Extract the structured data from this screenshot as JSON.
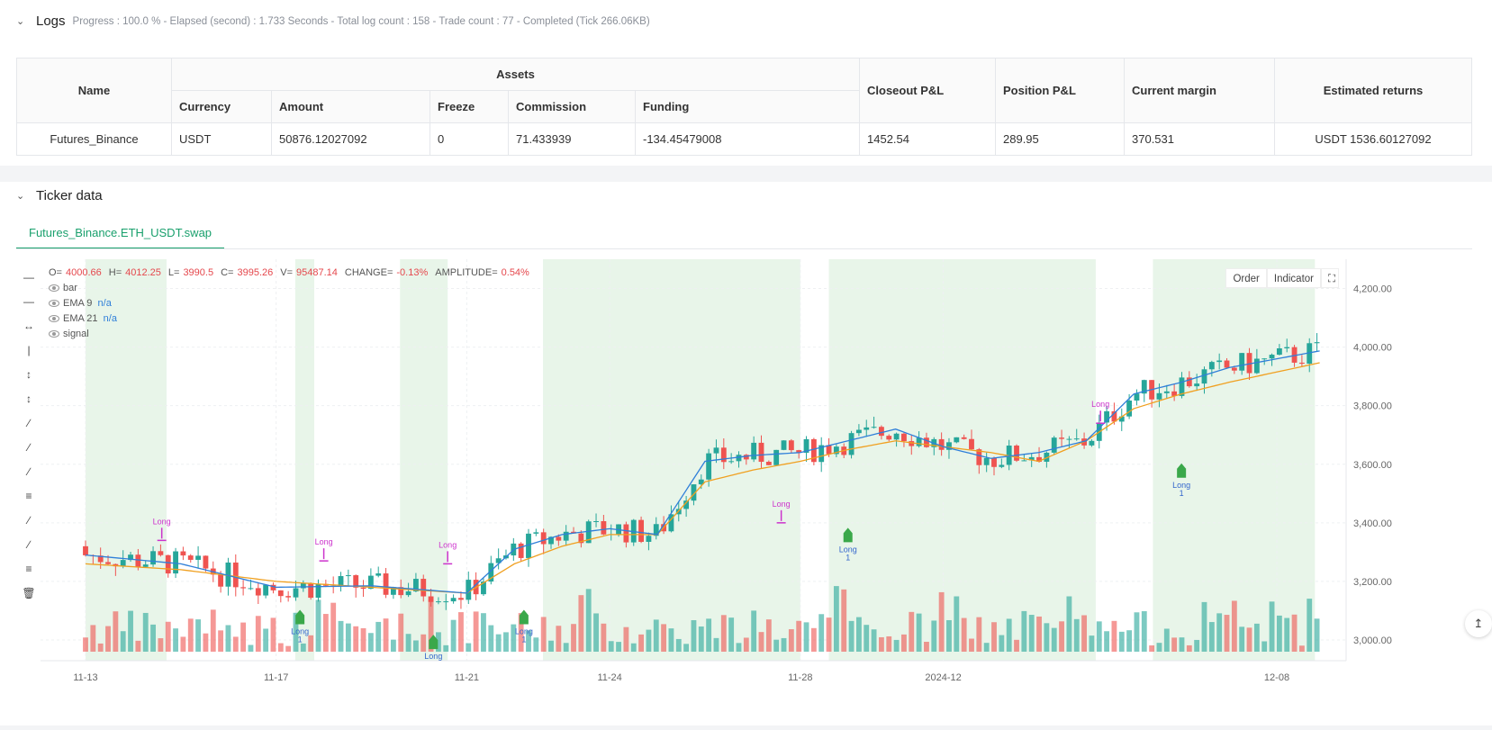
{
  "logs": {
    "title": "Logs",
    "subtitle": "Progress : 100.0 % - Elapsed (second) : 1.733  Seconds - Total log count : 158 - Trade count : 77 - Completed (Tick 266.06KB)",
    "table": {
      "name_header": "Name",
      "assets_header": "Assets",
      "sub_headers": [
        "Currency",
        "Amount",
        "Freeze",
        "Commission",
        "Funding"
      ],
      "other_headers": [
        "Closeout P&L",
        "Position P&L",
        "Current margin",
        "Estimated returns"
      ],
      "row": {
        "name": "Futures_Binance",
        "currency": "USDT",
        "amount": "50876.12027092",
        "freeze": "0",
        "commission": "71.433939",
        "funding": "-134.45479008",
        "closeout_pnl": "1452.54",
        "position_pnl": "289.95",
        "current_margin": "370.531",
        "estimated_returns": "USDT 1536.60127092"
      }
    }
  },
  "ticker": {
    "title": "Ticker data",
    "tab_label": "Futures_Binance.ETH_USDT.swap",
    "buttons": {
      "order": "Order",
      "indicator": "Indicator"
    },
    "legend": {
      "o_label": "O=",
      "o": "4000.66",
      "h_label": "H=",
      "h": "4012.25",
      "l_label": "L=",
      "l": "3990.5",
      "c_label": "C=",
      "c": "3995.26",
      "v_label": "V=",
      "v": "95487.14",
      "change_label": "CHANGE=",
      "change": "-0.13%",
      "amp_label": "AMPLITUDE=",
      "amp": "0.54%",
      "series": [
        {
          "name": "bar",
          "value": ""
        },
        {
          "name": "EMA 9",
          "value": "n/a"
        },
        {
          "name": "EMA 21",
          "value": "n/a"
        },
        {
          "name": "signal",
          "value": ""
        }
      ]
    },
    "colors": {
      "up": "#26a69a",
      "down": "#ef5350",
      "ema9": "#2f7fd9",
      "ema21": "#f0a020",
      "signal": "#cc33cc",
      "long_marker": "#3aa84a",
      "band": "#e8f5e9"
    }
  },
  "chart_data": {
    "type": "candlestick",
    "y_ticks": [
      "4,200.00",
      "4,000.00",
      "3,800.00",
      "3,600.00",
      "3,400.00",
      "3,200.00",
      "3,000.00"
    ],
    "y_range": [
      2960,
      4300
    ],
    "x_ticks": [
      {
        "label": "11-13",
        "day": 0
      },
      {
        "label": "11-17",
        "day": 4
      },
      {
        "label": "11-21",
        "day": 8
      },
      {
        "label": "11-24",
        "day": 11
      },
      {
        "label": "11-28",
        "day": 15
      },
      {
        "label": "2024-12",
        "day": 18
      },
      {
        "label": "12-08",
        "day": 25
      }
    ],
    "ema_keypoints": {
      "ema9": [
        [
          0,
          3290
        ],
        [
          2,
          3260
        ],
        [
          4,
          3180
        ],
        [
          6,
          3185
        ],
        [
          8,
          3160
        ],
        [
          9,
          3310
        ],
        [
          10,
          3360
        ],
        [
          11,
          3380
        ],
        [
          12,
          3360
        ],
        [
          13,
          3610
        ],
        [
          14,
          3630
        ],
        [
          15,
          3640
        ],
        [
          16,
          3680
        ],
        [
          17,
          3720
        ],
        [
          18,
          3660
        ],
        [
          19,
          3620
        ],
        [
          20,
          3640
        ],
        [
          21,
          3680
        ],
        [
          22,
          3840
        ],
        [
          23,
          3880
        ],
        [
          24,
          3930
        ],
        [
          26,
          3990
        ]
      ],
      "ema21": [
        [
          0,
          3260
        ],
        [
          2,
          3240
        ],
        [
          4,
          3200
        ],
        [
          6,
          3180
        ],
        [
          8,
          3160
        ],
        [
          9,
          3260
        ],
        [
          10,
          3320
        ],
        [
          11,
          3360
        ],
        [
          12,
          3360
        ],
        [
          13,
          3540
        ],
        [
          14,
          3580
        ],
        [
          15,
          3610
        ],
        [
          16,
          3650
        ],
        [
          17,
          3680
        ],
        [
          18,
          3660
        ],
        [
          19,
          3640
        ],
        [
          20,
          3610
        ],
        [
          21,
          3680
        ],
        [
          22,
          3790
        ],
        [
          23,
          3840
        ],
        [
          24,
          3880
        ],
        [
          26,
          3950
        ]
      ]
    },
    "signal_labels": [
      {
        "text": "Long",
        "kind": "signal",
        "day": 1.6,
        "price": 3340
      },
      {
        "text": "Long",
        "kind": "signal",
        "day": 5.0,
        "price": 3270
      },
      {
        "text": "Long",
        "kind": "signal",
        "day": 7.6,
        "price": 3260
      },
      {
        "text": "Long",
        "kind": "signal",
        "day": 14.6,
        "price": 3400
      },
      {
        "text": "Long",
        "kind": "signal",
        "day": 21.3,
        "price": 3740
      },
      {
        "text": "Long",
        "kind": "entry",
        "value": "1",
        "day": 4.5,
        "price": 3060
      },
      {
        "text": "Long",
        "kind": "entry",
        "value": "1",
        "day": 9.2,
        "price": 3060
      },
      {
        "text": "Long",
        "kind": "entry",
        "value": "1",
        "day": 16.0,
        "price": 3340
      },
      {
        "text": "Long",
        "kind": "entry",
        "value": "1",
        "day": 23.0,
        "price": 3560
      },
      {
        "text": "Long",
        "kind": "entry",
        "value": "",
        "day": 7.3,
        "price": 2975
      }
    ],
    "bands": [
      [
        0,
        1.7
      ],
      [
        4.4,
        4.8
      ],
      [
        6.6,
        7.6
      ],
      [
        9.6,
        15
      ],
      [
        15.6,
        21.2
      ],
      [
        22.4,
        25.8
      ]
    ]
  }
}
